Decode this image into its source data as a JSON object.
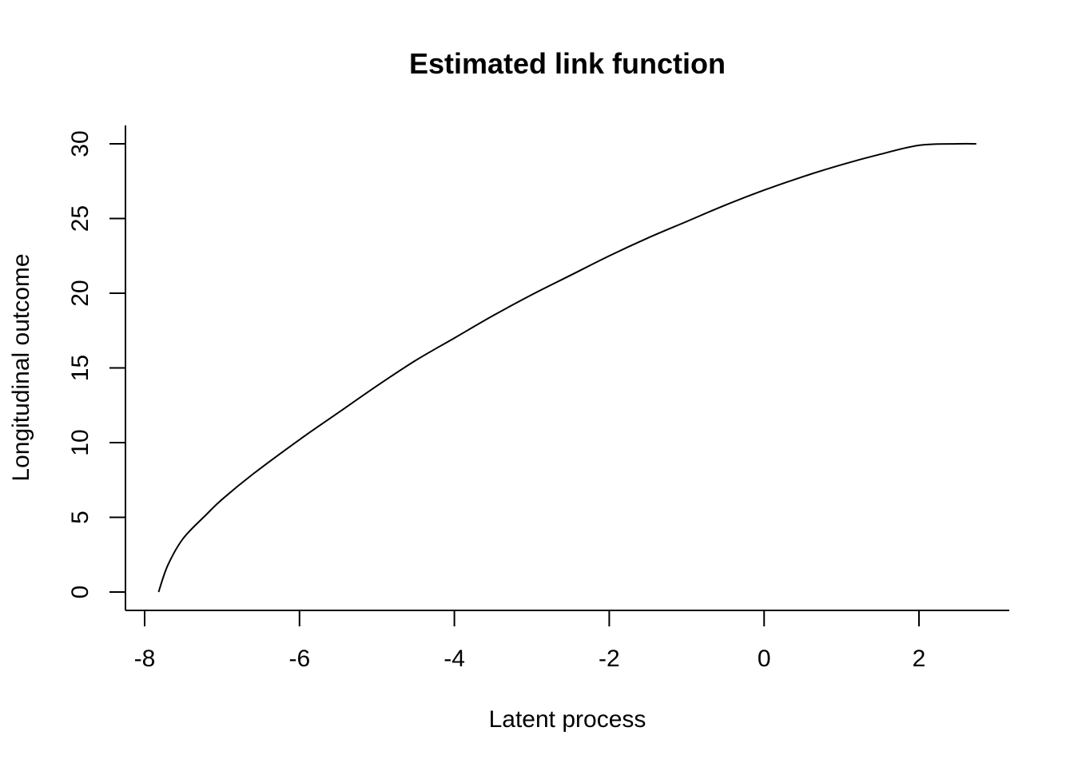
{
  "chart_data": {
    "type": "line",
    "title": "Estimated link function",
    "xlabel": "Latent process",
    "ylabel": "Longitudinal outcome",
    "xlim": [
      -8.3,
      3.1
    ],
    "ylim": [
      -1.2,
      31.2
    ],
    "x_ticks": [
      -8,
      -6,
      -4,
      -2,
      0,
      2
    ],
    "x_tick_labels": [
      "-8",
      "-6",
      "-4",
      "-2",
      "0",
      "2"
    ],
    "y_ticks": [
      0,
      5,
      10,
      15,
      20,
      25,
      30
    ],
    "y_tick_labels": [
      "0",
      "5",
      "10",
      "15",
      "20",
      "25",
      "30"
    ],
    "grid": false,
    "series": [
      {
        "color": "#000000",
        "x": [
          -7.82,
          -7.7,
          -7.5,
          -7.2,
          -7.0,
          -6.6,
          -6.0,
          -5.5,
          -5.0,
          -4.5,
          -4.0,
          -3.5,
          -3.0,
          -2.5,
          -2.0,
          -1.5,
          -1.0,
          -0.5,
          0.0,
          0.5,
          1.0,
          1.5,
          2.0,
          2.5,
          2.74
        ],
        "y": [
          0.0,
          1.8,
          3.6,
          5.2,
          6.2,
          7.9,
          10.2,
          12.0,
          13.8,
          15.5,
          17.0,
          18.5,
          19.9,
          21.2,
          22.5,
          23.7,
          24.8,
          25.9,
          26.9,
          27.8,
          28.6,
          29.3,
          29.9,
          30.0,
          30.0
        ]
      }
    ]
  }
}
